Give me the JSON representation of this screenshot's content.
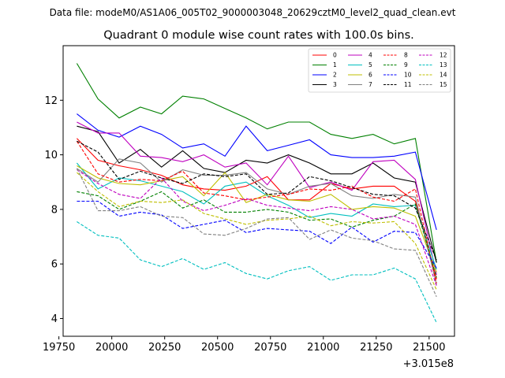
{
  "header": {
    "data_file": "Data file: modeM0/AS1A06_005T02_9000003048_20629cztM0_level2_quad_clean.evt"
  },
  "chart_data": {
    "type": "line",
    "title": "Quadrant 0 module wise count rates with 100.0s bins.",
    "xlabel": "",
    "ylabel": "",
    "x_offset_label": "+3.015e8",
    "xlim": [
      19770,
      21620
    ],
    "ylim": [
      3.35,
      14.0
    ],
    "x_ticks": [
      19750,
      20000,
      20250,
      20500,
      20750,
      21000,
      21250,
      21500
    ],
    "x_tick_labels": [
      "19750",
      "20000",
      "20250",
      "20500",
      "20750",
      "21000",
      "21250",
      "21500"
    ],
    "y_ticks": [
      4,
      6,
      8,
      10,
      12
    ],
    "y_tick_labels": [
      "4",
      "6",
      "8",
      "10",
      "12"
    ],
    "x": [
      19835,
      19935,
      20035,
      20135,
      20235,
      20335,
      20435,
      20535,
      20635,
      20735,
      20835,
      20935,
      21035,
      21135,
      21235,
      21335,
      21435,
      21535
    ],
    "series": [
      {
        "name": "0",
        "color": "#ff0000",
        "style": "solid",
        "values": [
          10.6,
          9.8,
          9.6,
          9.45,
          9.25,
          8.9,
          8.75,
          8.7,
          8.85,
          9.2,
          8.35,
          8.35,
          8.95,
          8.75,
          8.85,
          8.85,
          8.3,
          5.45
        ]
      },
      {
        "name": "1",
        "color": "#008000",
        "style": "solid",
        "values": [
          13.35,
          12.05,
          11.35,
          11.75,
          11.5,
          12.15,
          12.05,
          11.7,
          11.35,
          10.95,
          11.2,
          11.2,
          10.75,
          10.6,
          10.75,
          10.4,
          10.6,
          6.05
        ]
      },
      {
        "name": "2",
        "color": "#0000ff",
        "style": "solid",
        "values": [
          11.5,
          10.9,
          10.65,
          11.05,
          10.75,
          10.25,
          10.4,
          9.95,
          11.05,
          10.15,
          10.35,
          10.55,
          10.0,
          9.9,
          9.9,
          9.95,
          10.1,
          7.25
        ]
      },
      {
        "name": "3",
        "color": "#000000",
        "style": "solid",
        "values": [
          11.05,
          10.85,
          9.7,
          10.2,
          9.55,
          10.15,
          9.5,
          9.35,
          9.8,
          9.7,
          10.0,
          9.7,
          9.3,
          9.3,
          9.7,
          9.15,
          9.0,
          6.05
        ]
      },
      {
        "name": "4",
        "color": "#bf00bf",
        "style": "solid",
        "values": [
          11.2,
          10.8,
          10.8,
          9.95,
          9.9,
          9.75,
          10.0,
          9.55,
          9.7,
          8.9,
          9.95,
          8.8,
          9.0,
          8.7,
          9.75,
          9.8,
          9.1,
          5.6
        ]
      },
      {
        "name": "5",
        "color": "#00bfbf",
        "style": "solid",
        "values": [
          9.7,
          8.75,
          9.15,
          9.05,
          8.85,
          8.65,
          8.2,
          8.85,
          9.0,
          8.5,
          8.15,
          7.7,
          7.85,
          7.75,
          8.2,
          8.1,
          8.15,
          5.8
        ]
      },
      {
        "name": "6",
        "color": "#bfbf00",
        "style": "solid",
        "values": [
          9.6,
          9.15,
          8.95,
          8.9,
          9.05,
          9.2,
          8.5,
          9.35,
          8.25,
          8.55,
          8.35,
          8.3,
          8.55,
          8.0,
          8.1,
          8.05,
          7.75,
          5.7
        ]
      },
      {
        "name": "7",
        "color": "#808080",
        "style": "solid",
        "values": [
          9.5,
          9.0,
          9.85,
          9.7,
          9.0,
          9.45,
          9.25,
          9.25,
          9.35,
          8.75,
          8.55,
          8.85,
          8.95,
          8.5,
          8.4,
          8.55,
          8.45,
          5.25
        ]
      },
      {
        "name": "8",
        "color": "#ff0000",
        "style": "dashed",
        "values": [
          10.5,
          9.3,
          9.0,
          9.1,
          9.05,
          9.4,
          8.6,
          8.5,
          8.35,
          8.45,
          8.55,
          8.75,
          8.7,
          8.85,
          8.45,
          8.3,
          8.75,
          5.3
        ]
      },
      {
        "name": "9",
        "color": "#008000",
        "style": "dashed",
        "values": [
          8.65,
          8.5,
          8.0,
          8.3,
          8.65,
          8.05,
          8.35,
          7.9,
          7.9,
          8.0,
          7.9,
          7.6,
          7.65,
          7.35,
          7.6,
          7.75,
          8.2,
          5.5
        ]
      },
      {
        "name": "10",
        "color": "#0000ff",
        "style": "dashed",
        "values": [
          8.3,
          8.3,
          7.75,
          7.9,
          7.8,
          7.3,
          7.45,
          7.6,
          7.15,
          7.3,
          7.25,
          7.2,
          6.75,
          7.35,
          6.8,
          7.2,
          7.15,
          5.85
        ]
      },
      {
        "name": "11",
        "color": "#000000",
        "style": "dashed",
        "values": [
          10.5,
          10.1,
          9.1,
          9.4,
          9.15,
          8.95,
          9.3,
          9.2,
          9.3,
          8.55,
          8.6,
          9.2,
          9.05,
          8.8,
          8.55,
          8.5,
          8.05,
          6.15
        ]
      },
      {
        "name": "12",
        "color": "#bf00bf",
        "style": "dashed",
        "values": [
          9.45,
          8.95,
          8.55,
          8.4,
          9.15,
          8.3,
          7.95,
          8.15,
          8.4,
          8.15,
          8.05,
          7.95,
          8.1,
          8.0,
          7.65,
          7.75,
          7.45,
          5.2
        ]
      },
      {
        "name": "13",
        "color": "#00bfbf",
        "style": "dashed",
        "values": [
          7.55,
          7.05,
          6.95,
          6.15,
          5.9,
          6.2,
          5.8,
          6.05,
          5.65,
          5.45,
          5.75,
          5.9,
          5.4,
          5.6,
          5.6,
          5.85,
          5.45,
          3.85
        ]
      },
      {
        "name": "14",
        "color": "#bfbf00",
        "style": "dashed",
        "values": [
          9.35,
          8.65,
          8.1,
          8.3,
          8.25,
          8.35,
          7.85,
          7.65,
          7.45,
          7.6,
          7.65,
          7.75,
          7.4,
          7.55,
          7.5,
          7.55,
          6.75,
          5.05
        ]
      },
      {
        "name": "15",
        "color": "#808080",
        "style": "dashed",
        "values": [
          9.5,
          7.95,
          7.95,
          8.1,
          7.75,
          7.7,
          7.1,
          7.05,
          7.3,
          7.65,
          7.7,
          6.9,
          7.25,
          6.95,
          6.85,
          6.55,
          6.5,
          4.8
        ]
      }
    ]
  }
}
